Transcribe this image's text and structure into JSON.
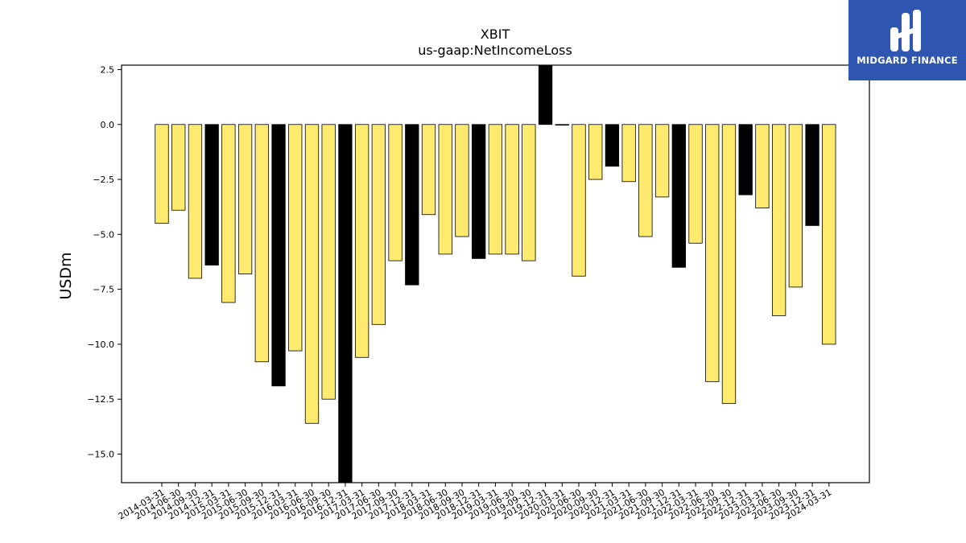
{
  "logo": {
    "text": "MIDGARD FINANCE",
    "bg_color": "#2f56b0"
  },
  "chart_data": {
    "type": "bar",
    "title": "XBIT",
    "subtitle": "us-gaap:NetIncomeLoss",
    "xlabel": "",
    "ylabel": "USDm",
    "ylim": [
      -16.3,
      2.7
    ],
    "yticks": [
      2.5,
      0.0,
      -2.5,
      -5.0,
      -7.5,
      -10.0,
      -12.5,
      -15.0
    ],
    "grid": false,
    "colors": {
      "quarter": "#ffea70",
      "annual": "#000000"
    },
    "categories": [
      "2014-03-31",
      "2014-06-30",
      "2014-09-30",
      "2014-12-31",
      "2015-03-31",
      "2015-06-30",
      "2015-09-30",
      "2015-12-31",
      "2016-03-31",
      "2016-06-30",
      "2016-09-30",
      "2016-12-31",
      "2017-03-31",
      "2017-06-30",
      "2017-09-30",
      "2017-12-31",
      "2018-03-31",
      "2018-06-30",
      "2018-09-30",
      "2018-12-31",
      "2019-03-31",
      "2019-06-30",
      "2019-09-30",
      "2019-12-31",
      "2020-03-31",
      "2020-06-30",
      "2020-09-30",
      "2020-12-31",
      "2021-03-31",
      "2021-06-30",
      "2021-09-30",
      "2021-12-31",
      "2022-03-31",
      "2022-06-30",
      "2022-09-30",
      "2022-12-31",
      "2023-03-31",
      "2023-06-30",
      "2023-09-30",
      "2023-12-31",
      "2024-03-31"
    ],
    "values": [
      -4.5,
      -3.9,
      -7.0,
      -6.4,
      -8.1,
      -6.8,
      -10.8,
      -11.9,
      -10.3,
      -13.6,
      -12.5,
      -17.5,
      -10.6,
      -9.1,
      -6.2,
      -7.3,
      -4.1,
      -5.9,
      -5.1,
      -6.1,
      -5.9,
      -5.9,
      -6.2,
      3.4,
      0.0,
      -6.9,
      -2.5,
      -1.9,
      -2.6,
      -5.1,
      -3.3,
      -6.5,
      -5.4,
      -11.7,
      -12.7,
      -3.2,
      -3.8,
      -8.7,
      -7.4,
      -4.6,
      -10.0
    ],
    "annual": [
      false,
      false,
      false,
      true,
      false,
      false,
      false,
      true,
      false,
      false,
      false,
      true,
      false,
      false,
      false,
      true,
      false,
      false,
      false,
      true,
      false,
      false,
      false,
      true,
      false,
      false,
      false,
      true,
      false,
      false,
      false,
      true,
      false,
      false,
      false,
      true,
      false,
      false,
      false,
      true,
      false
    ]
  }
}
